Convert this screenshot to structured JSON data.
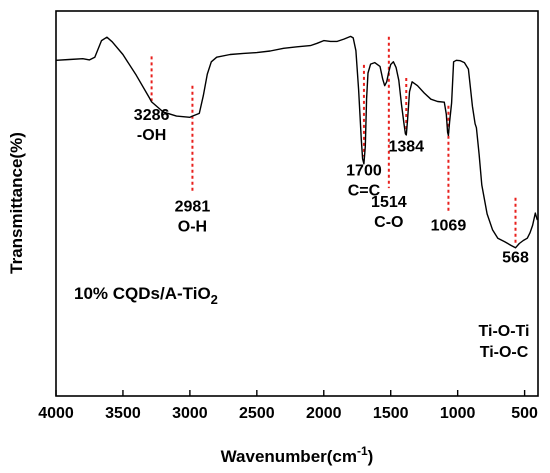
{
  "chart_data": {
    "type": "line",
    "title": "",
    "xlabel": "Wavenumber(cm",
    "xlabel_sup": "-1",
    "xlabel_tail": ")",
    "ylabel": "Transmittance(%)",
    "xlim": [
      4000,
      400
    ],
    "ylim": [
      0,
      100
    ],
    "x_ticks": [
      "4000",
      "3500",
      "3000",
      "2500",
      "2000",
      "1500",
      "1000",
      "500"
    ],
    "x_tick_values": [
      4000,
      3500,
      3000,
      2500,
      2000,
      1500,
      1000,
      500
    ],
    "y_ticks_labeled": false,
    "sample_label": "10% CQDs/A-TiO",
    "sample_label_sub": "2",
    "line_color": "#000000",
    "marker_color": "#e8201d",
    "series": [
      {
        "values": [
          [
            4000,
            87.2
          ],
          [
            3900,
            87.4
          ],
          [
            3800,
            87.6
          ],
          [
            3750,
            87.3
          ],
          [
            3710,
            88.0
          ],
          [
            3660,
            92.3
          ],
          [
            3620,
            93.2
          ],
          [
            3580,
            92.0
          ],
          [
            3500,
            88.7
          ],
          [
            3400,
            83.3
          ],
          [
            3300,
            77.3
          ],
          [
            3286,
            76.4
          ],
          [
            3200,
            73.8
          ],
          [
            3100,
            72.7
          ],
          [
            3000,
            72.4
          ],
          [
            2981,
            72.7
          ],
          [
            2930,
            73.4
          ],
          [
            2900,
            78.0
          ],
          [
            2870,
            83.6
          ],
          [
            2840,
            86.8
          ],
          [
            2800,
            88.0
          ],
          [
            2700,
            88.7
          ],
          [
            2600,
            89.0
          ],
          [
            2500,
            89.2
          ],
          [
            2400,
            89.6
          ],
          [
            2300,
            90.3
          ],
          [
            2200,
            90.7
          ],
          [
            2100,
            91.0
          ],
          [
            2050,
            91.6
          ],
          [
            2000,
            92.3
          ],
          [
            1950,
            92.1
          ],
          [
            1900,
            92.1
          ],
          [
            1850,
            92.7
          ],
          [
            1800,
            93.4
          ],
          [
            1780,
            93.0
          ],
          [
            1760,
            89.7
          ],
          [
            1740,
            79.6
          ],
          [
            1720,
            66.6
          ],
          [
            1710,
            61.6
          ],
          [
            1700,
            60.3
          ],
          [
            1690,
            64.8
          ],
          [
            1680,
            77.3
          ],
          [
            1670,
            83.9
          ],
          [
            1650,
            86.2
          ],
          [
            1620,
            86.6
          ],
          [
            1580,
            85.6
          ],
          [
            1560,
            82.3
          ],
          [
            1545,
            80.6
          ],
          [
            1530,
            81.6
          ],
          [
            1514,
            84.2
          ],
          [
            1500,
            86.1
          ],
          [
            1480,
            86.8
          ],
          [
            1460,
            85.3
          ],
          [
            1440,
            82.0
          ],
          [
            1420,
            75.9
          ],
          [
            1400,
            70.5
          ],
          [
            1390,
            68.1
          ],
          [
            1384,
            67.8
          ],
          [
            1375,
            71.5
          ],
          [
            1360,
            79.0
          ],
          [
            1340,
            81.6
          ],
          [
            1300,
            80.6
          ],
          [
            1250,
            78.7
          ],
          [
            1200,
            77.1
          ],
          [
            1150,
            76.5
          ],
          [
            1100,
            76.3
          ],
          [
            1085,
            73.2
          ],
          [
            1075,
            68.5
          ],
          [
            1069,
            67.7
          ],
          [
            1060,
            71.2
          ],
          [
            1045,
            76.1
          ],
          [
            1030,
            86.8
          ],
          [
            1010,
            87.2
          ],
          [
            980,
            87.1
          ],
          [
            950,
            86.6
          ],
          [
            920,
            84.9
          ],
          [
            890,
            75.3
          ],
          [
            870,
            70.7
          ],
          [
            860,
            69.7
          ],
          [
            840,
            62.8
          ],
          [
            820,
            54.8
          ],
          [
            780,
            47.3
          ],
          [
            740,
            43.2
          ],
          [
            700,
            41.0
          ],
          [
            650,
            40.1
          ],
          [
            600,
            39.1
          ],
          [
            568,
            38.5
          ],
          [
            540,
            39.6
          ],
          [
            510,
            40.4
          ],
          [
            480,
            41.0
          ],
          [
            460,
            42.4
          ],
          [
            440,
            44.3
          ],
          [
            420,
            47.5
          ],
          [
            405,
            45.7
          ]
        ]
      }
    ],
    "annotations": [
      {
        "label": "3286",
        "sub": "-OH",
        "x": 3286,
        "y_top": 88.2,
        "y_bottom": 76.6
      },
      {
        "label": "2981",
        "sub": "O-H",
        "x": 2981,
        "y_top": 80.6,
        "y_bottom": 52.9
      },
      {
        "label": "1700",
        "sub": "C=C",
        "x": 1700,
        "y_top": 86.0,
        "y_bottom": 62.2
      },
      {
        "label": "1514",
        "sub": "C-O",
        "x": 1514,
        "y_top": 93.3,
        "y_bottom": 54.0
      },
      {
        "label": "1384",
        "sub": "",
        "x": 1384,
        "y_top": 82.6,
        "y_bottom": 68.5
      },
      {
        "label": "1069",
        "sub": "",
        "x": 1069,
        "y_top": 75.4,
        "y_bottom": 47.9
      },
      {
        "label": "568",
        "sub": "",
        "x": 568,
        "y_top": 51.5,
        "y_bottom": 39.6
      }
    ],
    "assignment_labels": [
      "Ti-O-Ti",
      "Ti-O-C"
    ]
  }
}
